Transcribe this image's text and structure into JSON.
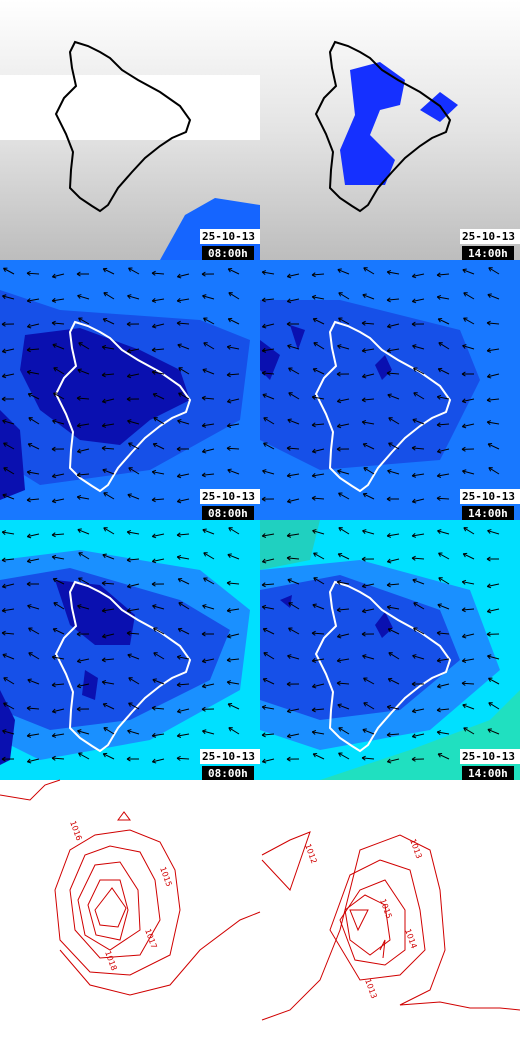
{
  "maps": [
    [
      {
        "date": "25-10-13",
        "time": "08:00h"
      },
      {
        "date": "25-10-13",
        "time": "14:00h"
      }
    ],
    [
      {
        "date": "25-10-13",
        "time": "08:00h"
      },
      {
        "date": "25-10-13",
        "time": "14:00h"
      }
    ],
    [
      {
        "date": "25-10-13",
        "time": "08:00h"
      },
      {
        "date": "25-10-13",
        "time": "14:00h"
      }
    ]
  ],
  "pressure": {
    "left": [
      "1016",
      "1015",
      "1017",
      "1018"
    ],
    "right": [
      "1012",
      "1013",
      "1015",
      "1014",
      "1013"
    ]
  }
}
